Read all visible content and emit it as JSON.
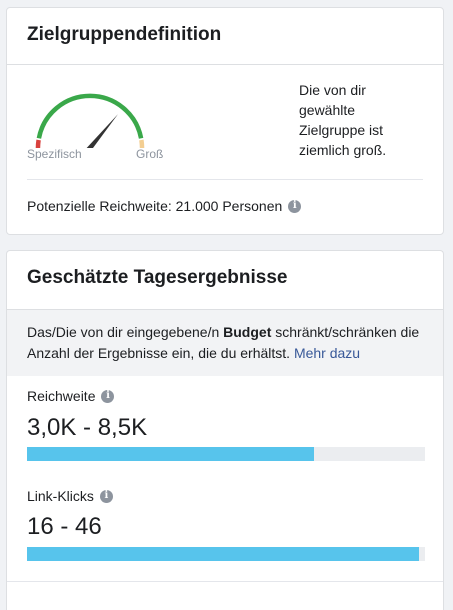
{
  "audience_card": {
    "title": "Zielgruppendefinition",
    "gauge": {
      "left_label": "Spezifisch",
      "right_label": "Groß",
      "level": 0.68,
      "colors": {
        "low": "#d9423e",
        "mid": "#3aa84a",
        "high": "#f3ce92",
        "needle": "#333333"
      }
    },
    "description": "Die von dir gewählte Zielgruppe ist ziemlich groß.",
    "potential_reach": "Potenzielle Reichweite: 21.000 Personen",
    "info_icon": "info-icon"
  },
  "results_card": {
    "title": "Geschätzte Tagesergebnisse",
    "notice": {
      "text_before": "Das/Die von dir eingegebene/n ",
      "bold": "Budget",
      "text_after": " schränkt/schränken die Anzahl der Ergebnisse ein, die du erhältst. ",
      "link": "Mehr dazu"
    },
    "metrics": [
      {
        "label": "Reichweite",
        "value": "3,0K - 8,5K",
        "fill": 0.72
      },
      {
        "label": "Link-Klicks",
        "value": "16 - 46",
        "fill": 0.985
      }
    ],
    "bar_color": "#57c4ec"
  }
}
